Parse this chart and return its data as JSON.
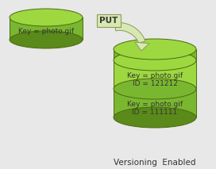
{
  "bg_color": "#e8e8e8",
  "fig_bg": "#e8e8e8",
  "cylinder_fill": "#7ab730",
  "cylinder_fill_dark": "#5a8a1a",
  "cylinder_fill_top": "#9dd840",
  "cylinder_stroke": "#4a6a10",
  "layer_fill_light": "#9dd840",
  "layer_fill_mid": "#7ab730",
  "arrow_fill": "#d8e8b0",
  "arrow_stroke": "#8a9a60",
  "put_box_fill": "#d8e8b0",
  "put_box_stroke": "#8a9a60",
  "text_color": "#333333",
  "put_text_color": "#333333",
  "label_text": "Key = photo.gif",
  "layer1_line1": "Key = photo.gif",
  "layer1_line2": "ID = 121212",
  "layer2_line1": "Key = photo.gif",
  "layer2_line2": "ID = 111111",
  "put_label": "PUT",
  "footer_label": "Versioning  Enabled",
  "font_size": 6.5,
  "footer_font_size": 7.5
}
